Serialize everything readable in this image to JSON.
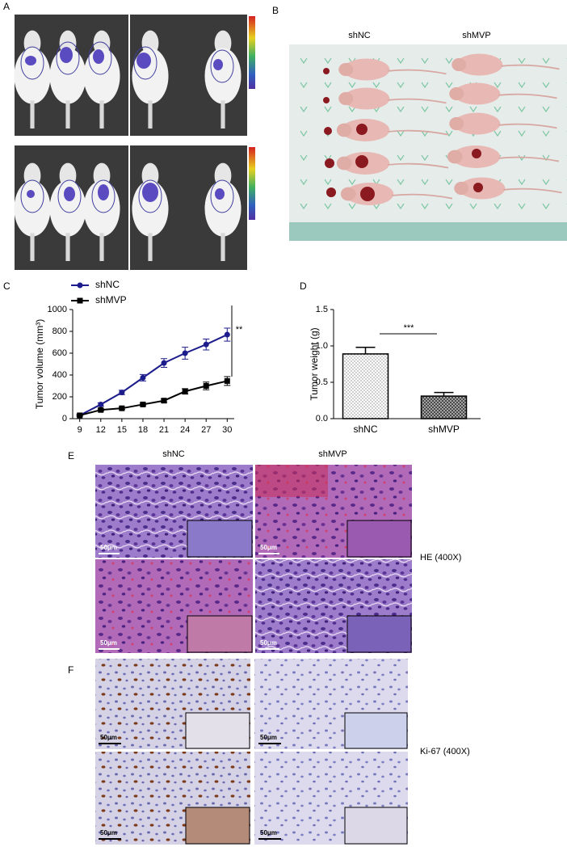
{
  "panels": {
    "A": {
      "label": "A"
    },
    "B": {
      "label": "B",
      "groups": [
        "shNC",
        "shMVP"
      ]
    },
    "C": {
      "label": "C"
    },
    "D": {
      "label": "D"
    },
    "E": {
      "label": "E",
      "columns": [
        "shNC",
        "shMVP"
      ],
      "stain": "HE (400X)",
      "scale_bars": [
        "50μm",
        "50μm",
        "50μm",
        "50μm"
      ]
    },
    "F": {
      "label": "F",
      "stain": "Ki-67 (400X)",
      "scale_bars": [
        "50μm",
        "50μm",
        "50μm",
        "50μm"
      ]
    }
  },
  "chart_data": [
    {
      "type": "line",
      "y_label": "Tumor volume (mm³)",
      "x": [
        9,
        12,
        15,
        18,
        21,
        24,
        27,
        30
      ],
      "series": [
        {
          "name": "shNC",
          "color": "#1c1c8c",
          "marker": "circle",
          "values": [
            30,
            130,
            240,
            375,
            510,
            600,
            680,
            770
          ],
          "errors": [
            10,
            15,
            20,
            30,
            40,
            55,
            50,
            60
          ]
        },
        {
          "name": "shMVP",
          "color": "#000000",
          "marker": "square",
          "values": [
            30,
            80,
            95,
            130,
            165,
            250,
            300,
            345
          ],
          "errors": [
            5,
            10,
            10,
            10,
            15,
            25,
            35,
            40
          ]
        }
      ],
      "xlim": [
        8,
        31
      ],
      "ylim": [
        0,
        1000
      ],
      "xticks": [
        9,
        12,
        15,
        18,
        21,
        24,
        27,
        30
      ],
      "yticks": [
        0,
        200,
        400,
        600,
        800,
        1000
      ],
      "annotation": "**"
    },
    {
      "type": "bar",
      "y_label": "Tumor weight (g)",
      "categories": [
        "shNC",
        "shMVP"
      ],
      "values": [
        0.89,
        0.31
      ],
      "errors": [
        0.09,
        0.05
      ],
      "patterns": [
        "dots",
        "crosshatch"
      ],
      "color": "#000000",
      "ylim": [
        0,
        1.5
      ],
      "yticks": [
        {
          "value": 0,
          "label": "0.0"
        },
        0.5,
        {
          "value": 1,
          "label": "1.0"
        },
        1.5
      ],
      "annotation": "***"
    }
  ]
}
